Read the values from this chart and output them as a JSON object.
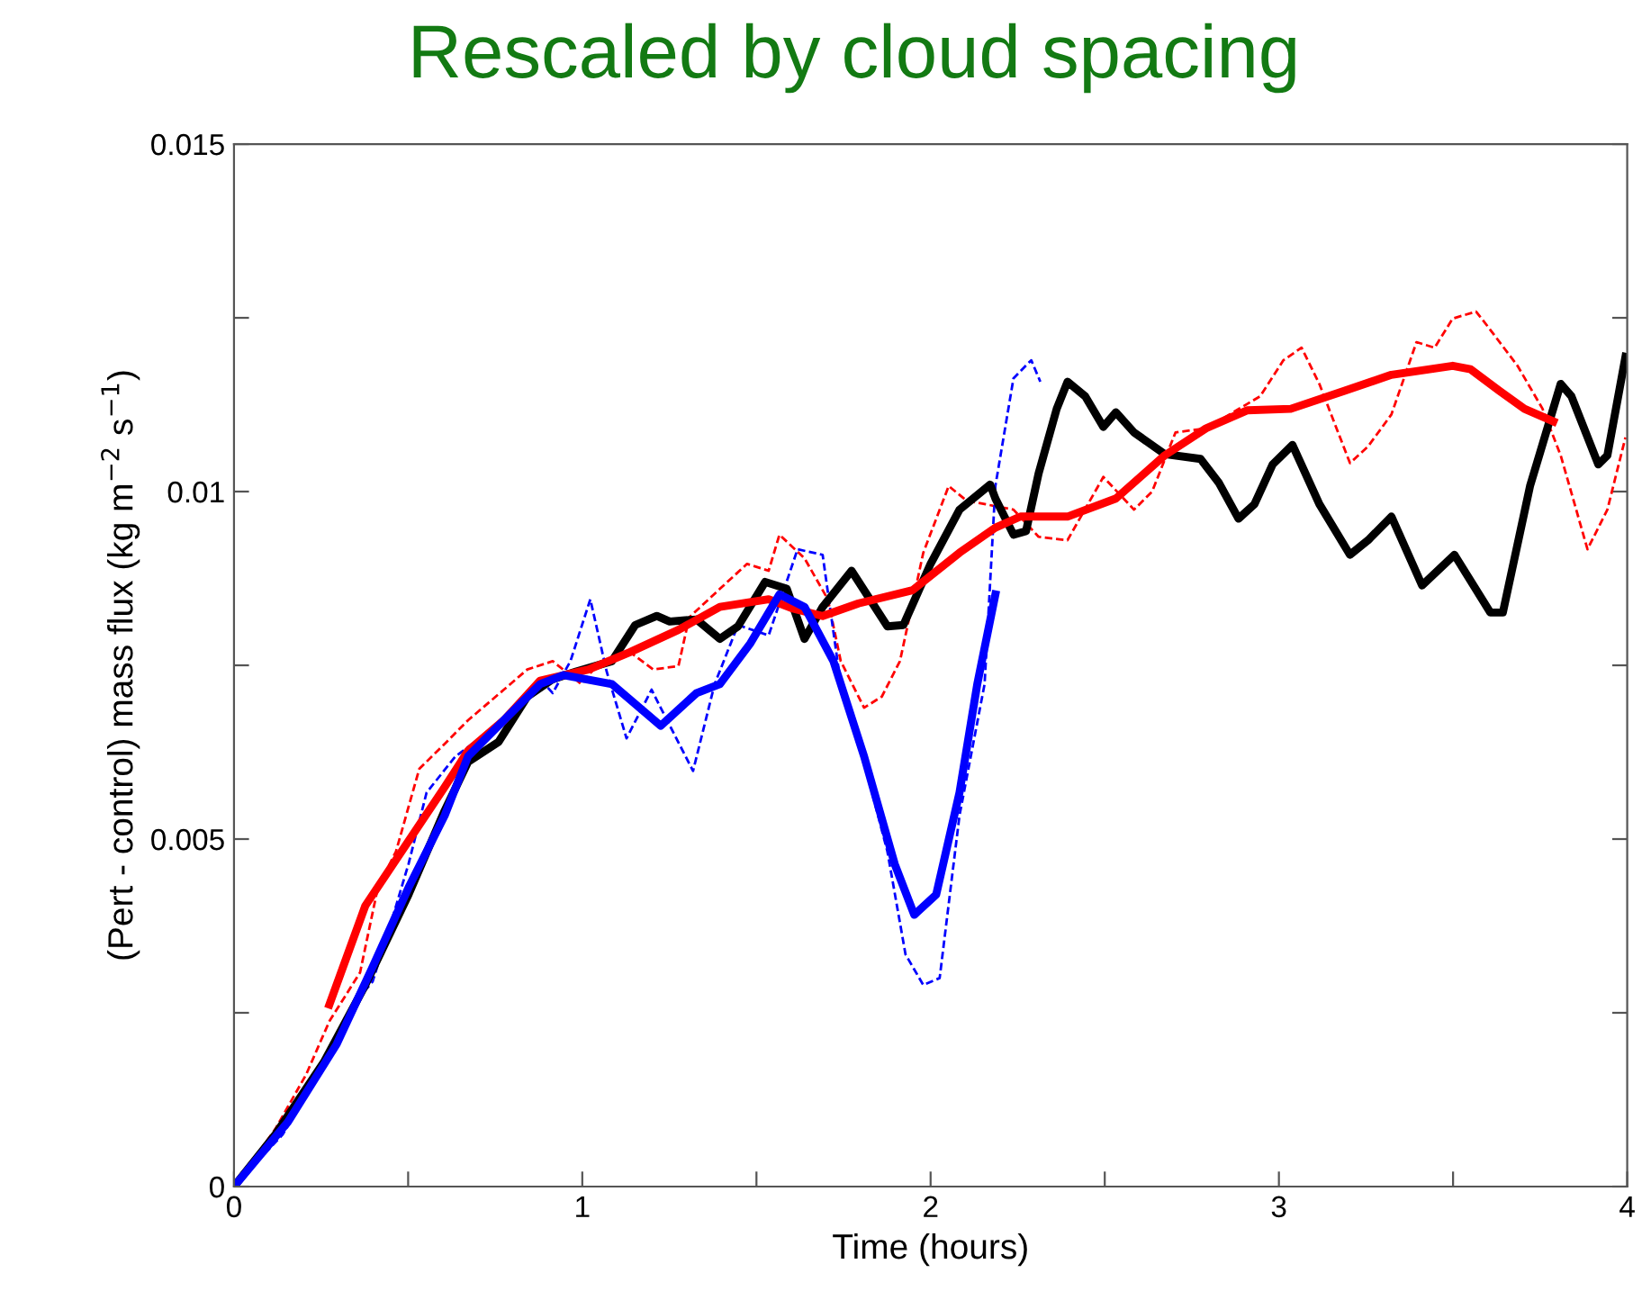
{
  "chart_data": {
    "type": "line",
    "title": "Rescaled by cloud spacing",
    "xlabel": "Time (hours)",
    "ylabel": "(Pert - control) mass flux (kg m$^{−2}$ s$^{−1}$)",
    "xlim": [
      0,
      4
    ],
    "ylim": [
      0,
      0.015
    ],
    "xticks": [
      0,
      {
        "value": 0.5,
        "label": null
      },
      1,
      {
        "value": 1.5,
        "label": null
      },
      2,
      {
        "value": 2.5,
        "label": null
      },
      3,
      {
        "value": 3.5,
        "label": null
      },
      4
    ],
    "yticks": [
      0,
      {
        "value": 0.0025,
        "label": null
      },
      0.005,
      {
        "value": 0.0075,
        "label": null
      },
      0.01,
      {
        "value": 0.0125,
        "label": null
      },
      0.015
    ],
    "grid": false,
    "series": [
      {
        "color": "#ff0000",
        "line_style": "dashed",
        "x": [
          0,
          0.119,
          0.207,
          0.274,
          0.362,
          0.413,
          0.465,
          0.532,
          0.605,
          0.672,
          0.775,
          0.842,
          0.915,
          0.997,
          1.049,
          1.137,
          1.204,
          1.276,
          1.307,
          1.395,
          1.473,
          1.535,
          1.566,
          1.638,
          1.705,
          1.742,
          1.809,
          1.86,
          1.912,
          1.979,
          2.052,
          2.103,
          2.155,
          2.238,
          2.31,
          2.393,
          2.496,
          2.584,
          2.636,
          2.703,
          2.791,
          2.946,
          3.013,
          3.065,
          3.116,
          3.204,
          3.256,
          3.323,
          3.395,
          3.447,
          3.499,
          3.566,
          3.602,
          3.685,
          3.757,
          3.809,
          3.886,
          3.943,
          3.995
        ],
        "values": [
          0,
          0.00083,
          0.00161,
          0.00238,
          0.00308,
          0.0043,
          0.00482,
          0.00601,
          0.00637,
          0.00671,
          0.00715,
          0.00744,
          0.00756,
          0.00723,
          0.00754,
          0.00769,
          0.00744,
          0.00749,
          0.00819,
          0.0086,
          0.00896,
          0.00886,
          0.00938,
          0.00904,
          0.00845,
          0.00756,
          0.00689,
          0.00705,
          0.00756,
          0.00912,
          0.01008,
          0.00987,
          0.00982,
          0.00974,
          0.00935,
          0.0093,
          0.01021,
          0.00974,
          0.01,
          0.01085,
          0.01091,
          0.01137,
          0.01189,
          0.01207,
          0.01155,
          0.01041,
          0.01065,
          0.01111,
          0.01215,
          0.01207,
          0.01249,
          0.01259,
          0.01236,
          0.01181,
          0.01119,
          0.01052,
          0.00917,
          0.00974,
          0.01078
        ]
      },
      {
        "color": "#0000ff",
        "line_style": "dashed",
        "x": [
          0,
          0.14,
          0.258,
          0.346,
          0.398,
          0.45,
          0.501,
          0.553,
          0.636,
          0.775,
          0.879,
          0.915,
          0.966,
          1.023,
          1.07,
          1.127,
          1.199,
          1.225,
          1.318,
          1.38,
          1.447,
          1.535,
          1.618,
          1.69,
          1.742,
          1.809,
          1.876,
          1.928,
          1.979,
          2.026,
          2.083,
          2.155,
          2.186,
          2.238,
          2.289,
          2.315
        ],
        "values": [
          0,
          0.00075,
          0.00171,
          0.00264,
          0.00295,
          0.00378,
          0.00464,
          0.00567,
          0.00619,
          0.00671,
          0.0073,
          0.0071,
          0.00756,
          0.00845,
          0.00741,
          0.00645,
          0.00715,
          0.00689,
          0.00598,
          0.00723,
          0.00808,
          0.00793,
          0.00917,
          0.00909,
          0.00723,
          0.00611,
          0.00482,
          0.00334,
          0.0029,
          0.003,
          0.00534,
          0.00723,
          0.01008,
          0.01163,
          0.01189,
          0.01158
        ]
      },
      {
        "color": "#000000",
        "line_style": "solid",
        "x": [
          0,
          0.119,
          0.258,
          0.377,
          0.501,
          0.605,
          0.672,
          0.76,
          0.842,
          0.915,
          0.982,
          1.085,
          1.152,
          1.214,
          1.251,
          1.328,
          1.395,
          1.447,
          1.525,
          1.587,
          1.638,
          1.69,
          1.773,
          1.876,
          1.922,
          2.0,
          2.083,
          2.171,
          2.186,
          2.238,
          2.274,
          2.31,
          2.362,
          2.393,
          2.444,
          2.496,
          2.532,
          2.584,
          2.672,
          2.775,
          2.827,
          2.884,
          2.93,
          2.982,
          3.039,
          3.116,
          3.204,
          3.256,
          3.323,
          3.411,
          3.504,
          3.607,
          3.643,
          3.721,
          3.809,
          3.84,
          3.917,
          3.943,
          3.995
        ],
        "values": [
          0,
          0.00075,
          0.00179,
          0.0029,
          0.0042,
          0.00541,
          0.00611,
          0.0064,
          0.00705,
          0.0073,
          0.00741,
          0.00756,
          0.00808,
          0.00821,
          0.00813,
          0.00816,
          0.00788,
          0.00806,
          0.0087,
          0.0086,
          0.00788,
          0.00834,
          0.00886,
          0.00806,
          0.00808,
          0.00896,
          0.00974,
          0.0101,
          0.0099,
          0.00938,
          0.00943,
          0.01026,
          0.01119,
          0.01158,
          0.01137,
          0.01093,
          0.01114,
          0.01085,
          0.01054,
          0.01047,
          0.01013,
          0.00961,
          0.00982,
          0.01039,
          0.01067,
          0.00982,
          0.00909,
          0.0093,
          0.00964,
          0.00865,
          0.00909,
          0.00826,
          0.00826,
          0.01008,
          0.01155,
          0.01137,
          0.01039,
          0.01052,
          0.01194
        ]
      },
      {
        "color": "#ff0000",
        "line_style": "solid",
        "x": [
          0.274,
          0.377,
          0.501,
          0.605,
          0.672,
          0.775,
          0.879,
          1.018,
          1.137,
          1.276,
          1.395,
          1.535,
          1.602,
          1.69,
          1.793,
          1.948,
          2.083,
          2.186,
          2.258,
          2.393,
          2.532,
          2.672,
          2.791,
          2.91,
          3.034,
          3.189,
          3.323,
          3.499,
          3.55,
          3.633,
          3.705,
          3.788
        ],
        "values": [
          0.00262,
          0.00404,
          0.00497,
          0.00575,
          0.00627,
          0.00671,
          0.00728,
          0.00744,
          0.00769,
          0.00801,
          0.00834,
          0.00845,
          0.00832,
          0.00821,
          0.00839,
          0.00858,
          0.00912,
          0.00948,
          0.00964,
          0.00964,
          0.0099,
          0.01052,
          0.01091,
          0.01117,
          0.01119,
          0.01145,
          0.01168,
          0.01181,
          0.01176,
          0.01145,
          0.01119,
          0.01101
        ]
      },
      {
        "color": "#0000ff",
        "line_style": "solid",
        "x": [
          0,
          0.155,
          0.295,
          0.398,
          0.501,
          0.605,
          0.672,
          0.775,
          0.879,
          0.946,
          1.085,
          1.225,
          1.328,
          1.395,
          1.483,
          1.566,
          1.638,
          1.721,
          1.809,
          1.897,
          1.953,
          2.016,
          2.083,
          2.134,
          2.186
        ],
        "values": [
          0,
          0.00093,
          0.00205,
          0.00316,
          0.0043,
          0.00534,
          0.00619,
          0.00671,
          0.00723,
          0.00736,
          0.00723,
          0.00663,
          0.0071,
          0.00723,
          0.00782,
          0.00852,
          0.00834,
          0.00756,
          0.00619,
          0.00464,
          0.00391,
          0.0042,
          0.00567,
          0.00723,
          0.00852
        ]
      }
    ]
  }
}
